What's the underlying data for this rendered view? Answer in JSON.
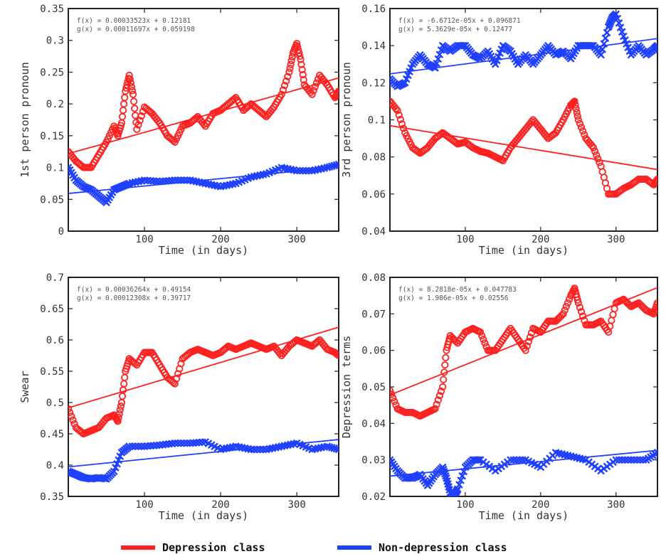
{
  "legend": [
    {
      "name": "Depression class",
      "color": "#ff2020"
    },
    {
      "name": "Non-depression class",
      "color": "#2040ff"
    }
  ],
  "chart_data": [
    {
      "type": "line",
      "ylabel": "1st person pronoun",
      "xlabel": "Time (in days)",
      "xlim": [
        0,
        355
      ],
      "ylim": [
        0,
        0.35
      ],
      "xticks": [
        "100",
        "200",
        "300"
      ],
      "yticks": [
        "0",
        "0.05",
        "0.1",
        "0.15",
        "0.2",
        "0.25",
        "0.3",
        "0.35"
      ],
      "equations": [
        "f(x) = 0.00033523x + 0.12181",
        "g(x) = 0.00011697x + 0.059198"
      ],
      "series": [
        {
          "name": "Depression class",
          "color": "#ff2020",
          "marker": "o",
          "x": [
            0,
            10,
            20,
            30,
            40,
            50,
            60,
            65,
            70,
            75,
            80,
            85,
            90,
            100,
            110,
            120,
            130,
            140,
            150,
            160,
            170,
            180,
            190,
            200,
            210,
            220,
            230,
            240,
            250,
            260,
            270,
            280,
            290,
            295,
            300,
            305,
            310,
            320,
            330,
            340,
            350,
            355
          ],
          "y": [
            0.125,
            0.11,
            0.1,
            0.1,
            0.12,
            0.14,
            0.165,
            0.15,
            0.17,
            0.22,
            0.245,
            0.215,
            0.16,
            0.195,
            0.185,
            0.17,
            0.15,
            0.14,
            0.165,
            0.17,
            0.18,
            0.165,
            0.185,
            0.19,
            0.2,
            0.21,
            0.19,
            0.2,
            0.19,
            0.18,
            0.195,
            0.215,
            0.25,
            0.28,
            0.295,
            0.27,
            0.23,
            0.215,
            0.245,
            0.23,
            0.21,
            0.22
          ],
          "fit": [
            0.12181,
            0.00033523
          ]
        },
        {
          "name": "Non-depression class",
          "color": "#2040ff",
          "marker": "x",
          "x": [
            0,
            10,
            20,
            30,
            40,
            50,
            60,
            70,
            80,
            100,
            120,
            140,
            160,
            180,
            200,
            220,
            240,
            260,
            280,
            300,
            320,
            340,
            355
          ],
          "y": [
            0.1,
            0.08,
            0.07,
            0.065,
            0.055,
            0.045,
            0.065,
            0.07,
            0.075,
            0.08,
            0.078,
            0.08,
            0.08,
            0.075,
            0.07,
            0.075,
            0.085,
            0.09,
            0.1,
            0.095,
            0.095,
            0.1,
            0.105
          ],
          "fit": [
            0.059198,
            0.00011697
          ]
        }
      ]
    },
    {
      "type": "line",
      "ylabel": "3rd person pronoun",
      "xlabel": "Time (in days)",
      "xlim": [
        0,
        355
      ],
      "ylim": [
        0.04,
        0.16
      ],
      "xticks": [
        "100",
        "200",
        "300"
      ],
      "yticks": [
        "0.04",
        "0.06",
        "0.08",
        "0.1",
        "0.12",
        "0.14",
        "0.16"
      ],
      "equations": [
        "f(x) = -6.6712e-05x + 0.096871",
        "g(x) = 5.3629e-05x + 0.12477"
      ],
      "series": [
        {
          "name": "Depression class",
          "color": "#ff2020",
          "marker": "o",
          "x": [
            0,
            10,
            20,
            30,
            40,
            50,
            60,
            70,
            80,
            90,
            100,
            110,
            120,
            130,
            140,
            150,
            160,
            170,
            180,
            190,
            200,
            210,
            220,
            230,
            240,
            245,
            250,
            260,
            270,
            280,
            290,
            300,
            310,
            320,
            330,
            340,
            350,
            355
          ],
          "y": [
            0.11,
            0.105,
            0.093,
            0.085,
            0.082,
            0.085,
            0.09,
            0.093,
            0.09,
            0.087,
            0.088,
            0.085,
            0.083,
            0.082,
            0.08,
            0.078,
            0.085,
            0.09,
            0.095,
            0.1,
            0.095,
            0.09,
            0.093,
            0.1,
            0.108,
            0.11,
            0.1,
            0.09,
            0.085,
            0.075,
            0.06,
            0.06,
            0.063,
            0.065,
            0.068,
            0.068,
            0.065,
            0.068
          ],
          "fit": [
            0.096871,
            -6.6712e-05
          ]
        },
        {
          "name": "Non-depression class",
          "color": "#2040ff",
          "marker": "x",
          "x": [
            0,
            10,
            20,
            30,
            40,
            50,
            60,
            70,
            80,
            90,
            100,
            110,
            120,
            130,
            140,
            150,
            160,
            170,
            180,
            190,
            200,
            210,
            220,
            230,
            240,
            250,
            260,
            270,
            280,
            290,
            295,
            300,
            310,
            320,
            330,
            340,
            350,
            355
          ],
          "y": [
            0.122,
            0.118,
            0.12,
            0.13,
            0.135,
            0.13,
            0.128,
            0.14,
            0.137,
            0.14,
            0.14,
            0.135,
            0.133,
            0.137,
            0.13,
            0.14,
            0.137,
            0.13,
            0.135,
            0.13,
            0.135,
            0.14,
            0.135,
            0.137,
            0.133,
            0.14,
            0.14,
            0.14,
            0.135,
            0.15,
            0.155,
            0.157,
            0.145,
            0.135,
            0.14,
            0.135,
            0.138,
            0.14
          ],
          "fit": [
            0.12477,
            5.3629e-05
          ]
        }
      ]
    },
    {
      "type": "line",
      "ylabel": "Swear",
      "xlabel": "Time (in days)",
      "xlim": [
        0,
        355
      ],
      "ylim": [
        0.35,
        0.7
      ],
      "xticks": [
        "100",
        "200",
        "300"
      ],
      "yticks": [
        "0.35",
        "0.4",
        "0.45",
        "0.5",
        "0.55",
        "0.6",
        "0.65",
        "0.7"
      ],
      "equations": [
        "f(x) = 0.00036264x + 0.49154",
        "g(x) = 0.00012308x + 0.39717"
      ],
      "series": [
        {
          "name": "Depression class",
          "color": "#ff2020",
          "marker": "o",
          "x": [
            0,
            10,
            20,
            30,
            40,
            50,
            60,
            65,
            70,
            75,
            80,
            90,
            100,
            110,
            120,
            130,
            140,
            150,
            160,
            170,
            180,
            190,
            200,
            210,
            220,
            230,
            240,
            250,
            260,
            270,
            280,
            290,
            300,
            310,
            320,
            330,
            340,
            350,
            355
          ],
          "y": [
            0.49,
            0.46,
            0.45,
            0.455,
            0.46,
            0.475,
            0.48,
            0.47,
            0.5,
            0.55,
            0.57,
            0.56,
            0.58,
            0.58,
            0.56,
            0.54,
            0.53,
            0.57,
            0.58,
            0.585,
            0.58,
            0.575,
            0.58,
            0.59,
            0.585,
            0.59,
            0.595,
            0.59,
            0.585,
            0.59,
            0.575,
            0.59,
            0.6,
            0.595,
            0.59,
            0.6,
            0.585,
            0.58,
            0.575
          ],
          "fit": [
            0.49154,
            0.00036264
          ]
        },
        {
          "name": "Non-depression class",
          "color": "#2040ff",
          "marker": "x",
          "x": [
            0,
            10,
            20,
            30,
            40,
            50,
            60,
            70,
            80,
            100,
            120,
            140,
            160,
            180,
            200,
            220,
            240,
            260,
            280,
            300,
            320,
            340,
            355
          ],
          "y": [
            0.39,
            0.385,
            0.38,
            0.378,
            0.38,
            0.378,
            0.39,
            0.42,
            0.43,
            0.43,
            0.432,
            0.435,
            0.435,
            0.437,
            0.425,
            0.43,
            0.425,
            0.425,
            0.43,
            0.435,
            0.425,
            0.43,
            0.425
          ],
          "fit": [
            0.39717,
            0.00012308
          ]
        }
      ]
    },
    {
      "type": "line",
      "ylabel": "Depression terms",
      "xlabel": "Time (in days)",
      "xlim": [
        0,
        355
      ],
      "ylim": [
        0.02,
        0.08
      ],
      "xticks": [
        "100",
        "200",
        "300"
      ],
      "yticks": [
        "0.02",
        "0.03",
        "0.04",
        "0.05",
        "0.06",
        "0.07",
        "0.08"
      ],
      "equations": [
        "f(x) = 8.2818e-05x + 0.047783",
        "g(x) = 1.986e-05x + 0.02556"
      ],
      "series": [
        {
          "name": "Depression class",
          "color": "#ff2020",
          "marker": "o",
          "x": [
            0,
            10,
            20,
            30,
            40,
            50,
            60,
            70,
            75,
            80,
            90,
            100,
            110,
            120,
            130,
            140,
            150,
            160,
            170,
            180,
            190,
            200,
            210,
            220,
            230,
            240,
            245,
            250,
            260,
            270,
            280,
            290,
            300,
            310,
            320,
            330,
            340,
            350,
            355
          ],
          "y": [
            0.049,
            0.044,
            0.043,
            0.043,
            0.042,
            0.043,
            0.044,
            0.05,
            0.06,
            0.064,
            0.062,
            0.065,
            0.066,
            0.065,
            0.06,
            0.06,
            0.063,
            0.066,
            0.063,
            0.06,
            0.066,
            0.065,
            0.068,
            0.068,
            0.07,
            0.075,
            0.077,
            0.073,
            0.067,
            0.067,
            0.068,
            0.065,
            0.073,
            0.074,
            0.072,
            0.073,
            0.071,
            0.07,
            0.073
          ],
          "fit": [
            0.047783,
            8.2818e-05
          ]
        },
        {
          "name": "Non-depression class",
          "color": "#2040ff",
          "marker": "x",
          "x": [
            0,
            10,
            20,
            30,
            40,
            50,
            60,
            70,
            75,
            80,
            85,
            90,
            100,
            110,
            120,
            140,
            160,
            180,
            200,
            220,
            240,
            260,
            280,
            300,
            320,
            340,
            355
          ],
          "y": [
            0.03,
            0.027,
            0.025,
            0.025,
            0.026,
            0.023,
            0.026,
            0.028,
            0.025,
            0.021,
            0.02,
            0.022,
            0.028,
            0.03,
            0.03,
            0.027,
            0.03,
            0.03,
            0.028,
            0.032,
            0.031,
            0.03,
            0.027,
            0.03,
            0.03,
            0.03,
            0.032
          ],
          "fit": [
            0.02556,
            1.986e-05
          ]
        }
      ]
    }
  ]
}
